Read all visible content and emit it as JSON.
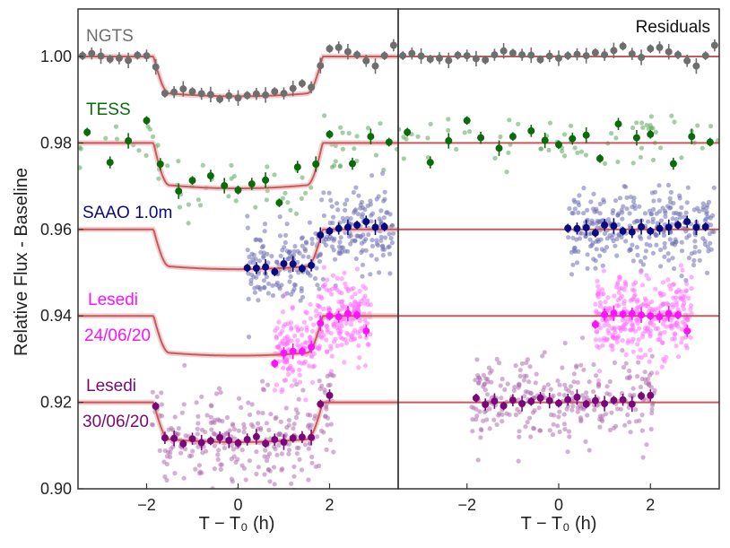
{
  "chart_data": {
    "type": "scatter",
    "ylabel": "Relative Flux - Baseline",
    "ylim": [
      0.9,
      1.011
    ],
    "panels": [
      {
        "name": "lightcurve",
        "xlim": [
          -3.5,
          3.5
        ],
        "xlabel": "T − T₀ (h)",
        "title": ""
      },
      {
        "name": "residuals",
        "xlim": [
          -3.5,
          3.5
        ],
        "xlabel": "T − T₀ (h)",
        "title": "Residuals"
      }
    ],
    "y_ticks": [
      0.9,
      0.92,
      0.94,
      0.96,
      0.98,
      1.0
    ],
    "y_tick_labels": [
      "0.90",
      "0.92",
      "0.94",
      "0.96",
      "0.98",
      "1.00"
    ],
    "x_ticks": [
      -2,
      0,
      2
    ],
    "x_tick_labels": [
      "−2",
      "0",
      "2"
    ],
    "model": {
      "t_ingress_start": -1.85,
      "t_full": 1.5,
      "color": "#c9595c"
    },
    "datasets": [
      {
        "name": "NGTS",
        "label": "NGTS",
        "offset": 1.0,
        "depth": 0.0092,
        "color": "#6e6e6e",
        "raw_color": "#9a9a9a",
        "raw_tmin": -3.5,
        "raw_tmax": 3.5,
        "raw_n": 0,
        "raw_scatter": 0,
        "binned_t": [
          -3.4,
          -3.2,
          -3.0,
          -2.8,
          -2.6,
          -2.4,
          -2.2,
          -2.0,
          -1.8,
          -1.6,
          -1.4,
          -1.2,
          -1.0,
          -0.8,
          -0.6,
          -0.4,
          -0.2,
          0.0,
          0.2,
          0.4,
          0.6,
          0.8,
          1.0,
          1.2,
          1.4,
          1.6,
          1.8,
          2.0,
          2.2,
          2.4,
          2.6,
          2.8,
          3.0,
          3.2,
          3.4
        ],
        "binned_res": [
          0.0002,
          0.0007,
          0.0001,
          -0.0006,
          -0.0004,
          -0.0009,
          0.0003,
          0.0002,
          -0.0005,
          -0.0008,
          0.0004,
          0.0013,
          0.0008,
          0.0004,
          0.0003,
          -0.0007,
          0.0001,
          -0.0004,
          0.0002,
          0.0005,
          0.0002,
          0.0009,
          0.0004,
          0.0014,
          0.0024,
          0.0006,
          -0.0002,
          0.0018,
          0.0021,
          0.0011,
          0.0004,
          -0.001,
          -0.0022,
          0.0002,
          0.0026
        ]
      },
      {
        "name": "TESS",
        "label": "TESS",
        "offset": 0.98,
        "depth": 0.0105,
        "color": "#0a6b0a",
        "raw_color": "#5aa55a",
        "raw_tmin": -3.5,
        "raw_tmax": 3.5,
        "raw_n": 70,
        "raw_scatter": 0.0035,
        "binned_t": [
          -3.3,
          -2.8,
          -2.4,
          -2.0,
          -1.7,
          -1.3,
          -1.0,
          -0.6,
          -0.3,
          0.0,
          0.3,
          0.6,
          0.9,
          1.3,
          1.7,
          2.0,
          2.5,
          2.9,
          3.3
        ],
        "binned_res": [
          0.0025,
          -0.0045,
          0.0005,
          0.0052,
          0.0012,
          -0.0012,
          0.0015,
          0.0028,
          0.0006,
          -0.0004,
          0.001,
          0.0018,
          -0.0036,
          0.0044,
          0.0012,
          0.002,
          -0.0048,
          0.0015,
          0.0002
        ]
      },
      {
        "name": "SAAO 1.0m",
        "label": "SAAO 1.0m",
        "offset": 0.96,
        "depth": 0.0092,
        "color": "#0a0a80",
        "raw_color": "#6f6fb5",
        "raw_tmin": 0.2,
        "raw_tmax": 3.4,
        "raw_n": 300,
        "raw_scatter": 0.0045,
        "binned_t": [
          0.2,
          0.4,
          0.6,
          0.8,
          1.0,
          1.2,
          1.4,
          1.6,
          1.8,
          2.0,
          2.2,
          2.4,
          2.6,
          2.8,
          3.0,
          3.2
        ],
        "binned_res": [
          0.0003,
          0.0002,
          0.0004,
          -0.0008,
          0.001,
          0.0008,
          -0.0004,
          -0.0006,
          0.0006,
          -0.0004,
          0.0002,
          0.0005,
          0.001,
          0.0018,
          0.0005,
          0.0006
        ]
      },
      {
        "name": "Lesedi 24/06/20",
        "label": "Lesedi",
        "label2": "24/06/20",
        "offset": 0.94,
        "depth": 0.0092,
        "color": "#ff10ff",
        "raw_color": "#ff70ff",
        "raw_tmin": 0.8,
        "raw_tmax": 2.9,
        "raw_n": 320,
        "raw_scatter": 0.0045,
        "binned_t": [
          0.8,
          1.0,
          1.2,
          1.4,
          1.6,
          1.8,
          2.0,
          2.2,
          2.4,
          2.6,
          2.8
        ],
        "binned_res": [
          -0.002,
          0.0003,
          0.0006,
          0.0004,
          0.0005,
          0.0002,
          0.0,
          -0.0002,
          0.0005,
          0.0002,
          -0.0035
        ]
      },
      {
        "name": "Lesedi 30/06/20",
        "label": "Lesedi",
        "label2": "30/06/20",
        "offset": 0.92,
        "depth": 0.0092,
        "color": "#7a087a",
        "raw_color": "#b070b0",
        "raw_tmin": -1.9,
        "raw_tmax": 2.1,
        "raw_n": 280,
        "raw_scatter": 0.0055,
        "binned_t": [
          -1.8,
          -1.6,
          -1.4,
          -1.2,
          -1.0,
          -0.8,
          -0.6,
          -0.4,
          -0.2,
          0.0,
          0.2,
          0.4,
          0.6,
          0.8,
          1.0,
          1.2,
          1.4,
          1.6,
          1.8,
          2.0
        ],
        "binned_res": [
          0.001,
          -0.0005,
          0.0003,
          -0.0008,
          0.0005,
          -0.0003,
          0.0002,
          0.001,
          0.0004,
          -0.0002,
          0.0006,
          0.0012,
          -0.0004,
          0.0004,
          -0.0003,
          0.0005,
          0.0006,
          -0.0004,
          0.0015,
          0.0016
        ]
      }
    ]
  }
}
